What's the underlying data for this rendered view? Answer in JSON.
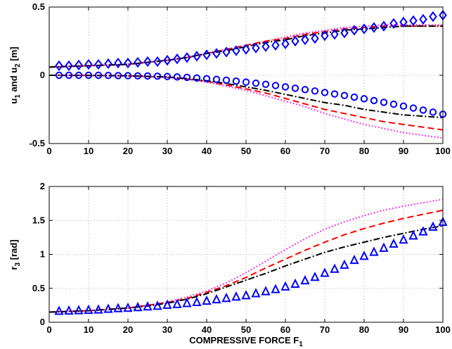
{
  "chart_data": [
    {
      "type": "line",
      "ylabel": {
        "base": "u",
        "sub1": "1",
        "mid": " and u",
        "sub2": "2",
        "tail": " [m]"
      },
      "xlim": [
        0,
        100
      ],
      "ylim": [
        -0.5,
        0.5
      ],
      "xticks": [
        "0",
        "10",
        "20",
        "30",
        "40",
        "50",
        "60",
        "70",
        "80",
        "90",
        "100"
      ],
      "yticks": [
        "-0.5",
        "0",
        "0.5"
      ],
      "ytick_values": [
        -0.5,
        0,
        0.5
      ],
      "grid": true,
      "series": [
        {
          "color": "#ff00ff",
          "style": "dotted",
          "x": [
            0,
            10,
            20,
            30,
            35,
            40,
            45,
            50,
            55,
            60,
            65,
            70,
            75,
            80,
            85,
            90,
            95,
            100
          ],
          "y": [
            0.06,
            0.07,
            0.08,
            0.11,
            0.13,
            0.16,
            0.19,
            0.22,
            0.25,
            0.28,
            0.31,
            0.33,
            0.35,
            0.36,
            0.37,
            0.37,
            0.37,
            0.37
          ]
        },
        {
          "color": "#ff0000",
          "style": "dashed",
          "x": [
            0,
            10,
            20,
            30,
            35,
            40,
            45,
            50,
            55,
            60,
            65,
            70,
            75,
            80,
            85,
            90,
            95,
            100
          ],
          "y": [
            0.06,
            0.07,
            0.08,
            0.11,
            0.13,
            0.16,
            0.19,
            0.22,
            0.25,
            0.27,
            0.3,
            0.32,
            0.34,
            0.35,
            0.36,
            0.36,
            0.36,
            0.36
          ]
        },
        {
          "color": "#000000",
          "style": "dashdot",
          "x": [
            0,
            10,
            20,
            30,
            35,
            40,
            45,
            50,
            55,
            60,
            65,
            70,
            75,
            80,
            85,
            90,
            95,
            100
          ],
          "y": [
            0.06,
            0.07,
            0.08,
            0.11,
            0.13,
            0.16,
            0.18,
            0.21,
            0.24,
            0.26,
            0.29,
            0.31,
            0.33,
            0.34,
            0.35,
            0.36,
            0.36,
            0.36
          ]
        },
        {
          "color": "#0000ff",
          "style": "markers",
          "marker": "diamond",
          "x": [
            2.5,
            5,
            7.5,
            10,
            12.5,
            15,
            17.5,
            20,
            22.5,
            25,
            27.5,
            30,
            32.5,
            35,
            37.5,
            40,
            42.5,
            45,
            47.5,
            50,
            52.5,
            55,
            57.5,
            60,
            62.5,
            65,
            67.5,
            70,
            72.5,
            75,
            77.5,
            80,
            82.5,
            85,
            87.5,
            90,
            92.5,
            95,
            97.5,
            100
          ],
          "y": [
            0.07,
            0.07,
            0.075,
            0.08,
            0.08,
            0.085,
            0.09,
            0.09,
            0.095,
            0.1,
            0.1,
            0.11,
            0.12,
            0.13,
            0.14,
            0.15,
            0.16,
            0.17,
            0.18,
            0.19,
            0.2,
            0.21,
            0.22,
            0.23,
            0.25,
            0.26,
            0.27,
            0.29,
            0.3,
            0.31,
            0.33,
            0.34,
            0.35,
            0.36,
            0.38,
            0.39,
            0.4,
            0.41,
            0.43,
            0.44
          ]
        },
        {
          "color": "#ff00ff",
          "style": "dotted",
          "x": [
            0,
            10,
            20,
            30,
            35,
            40,
            45,
            50,
            55,
            60,
            65,
            70,
            75,
            80,
            85,
            90,
            95,
            100
          ],
          "y": [
            0,
            -0.001,
            -0.005,
            -0.015,
            -0.03,
            -0.05,
            -0.08,
            -0.11,
            -0.15,
            -0.19,
            -0.23,
            -0.28,
            -0.32,
            -0.36,
            -0.39,
            -0.42,
            -0.44,
            -0.46
          ]
        },
        {
          "color": "#ff0000",
          "style": "dashed",
          "x": [
            0,
            10,
            20,
            30,
            35,
            40,
            45,
            50,
            55,
            60,
            65,
            70,
            75,
            80,
            85,
            90,
            95,
            100
          ],
          "y": [
            0,
            -0.001,
            -0.004,
            -0.014,
            -0.027,
            -0.045,
            -0.07,
            -0.1,
            -0.13,
            -0.17,
            -0.21,
            -0.25,
            -0.28,
            -0.31,
            -0.34,
            -0.36,
            -0.38,
            -0.4
          ]
        },
        {
          "color": "#000000",
          "style": "dashdot",
          "x": [
            0,
            10,
            20,
            30,
            35,
            40,
            45,
            50,
            55,
            60,
            65,
            70,
            75,
            80,
            85,
            90,
            95,
            100
          ],
          "y": [
            0,
            -0.001,
            -0.003,
            -0.012,
            -0.024,
            -0.04,
            -0.06,
            -0.085,
            -0.11,
            -0.14,
            -0.17,
            -0.2,
            -0.22,
            -0.25,
            -0.27,
            -0.29,
            -0.3,
            -0.31
          ]
        },
        {
          "color": "#0000ff",
          "style": "markers",
          "marker": "circle",
          "x": [
            2.5,
            5,
            7.5,
            10,
            12.5,
            15,
            17.5,
            20,
            22.5,
            25,
            27.5,
            30,
            32.5,
            35,
            37.5,
            40,
            42.5,
            45,
            47.5,
            50,
            52.5,
            55,
            57.5,
            60,
            62.5,
            65,
            67.5,
            70,
            72.5,
            75,
            77.5,
            80,
            82.5,
            85,
            87.5,
            90,
            92.5,
            95,
            97.5,
            100
          ],
          "y": [
            0,
            0,
            0,
            0,
            0,
            -0.001,
            -0.002,
            -0.003,
            -0.004,
            -0.005,
            -0.007,
            -0.009,
            -0.012,
            -0.015,
            -0.02,
            -0.025,
            -0.03,
            -0.036,
            -0.043,
            -0.05,
            -0.058,
            -0.066,
            -0.075,
            -0.085,
            -0.095,
            -0.105,
            -0.115,
            -0.126,
            -0.137,
            -0.148,
            -0.16,
            -0.172,
            -0.185,
            -0.198,
            -0.212,
            -0.226,
            -0.24,
            -0.255,
            -0.27,
            -0.285
          ]
        }
      ]
    },
    {
      "type": "line",
      "xlabel": {
        "base": "COMPRESSIVE FORCE F",
        "sub": "1"
      },
      "ylabel": {
        "base": "r",
        "sub": "3",
        "tail": " [rad]"
      },
      "xlim": [
        0,
        100
      ],
      "ylim": [
        0,
        2
      ],
      "xticks": [
        "0",
        "10",
        "20",
        "30",
        "40",
        "50",
        "60",
        "70",
        "80",
        "90",
        "100"
      ],
      "yticks": [
        "0",
        "0.5",
        "1",
        "1.5",
        "2"
      ],
      "ytick_values": [
        0,
        0.5,
        1,
        1.5,
        2
      ],
      "grid": true,
      "series": [
        {
          "color": "#ff00ff",
          "style": "dotted",
          "x": [
            0,
            10,
            20,
            25,
            30,
            35,
            40,
            45,
            50,
            55,
            60,
            65,
            70,
            75,
            80,
            85,
            90,
            95,
            100
          ],
          "y": [
            0.15,
            0.17,
            0.21,
            0.25,
            0.3,
            0.37,
            0.46,
            0.58,
            0.73,
            0.9,
            1.07,
            1.23,
            1.37,
            1.48,
            1.57,
            1.65,
            1.71,
            1.76,
            1.81
          ]
        },
        {
          "color": "#ff0000",
          "style": "dashed",
          "x": [
            0,
            10,
            20,
            25,
            30,
            35,
            40,
            45,
            50,
            55,
            60,
            65,
            70,
            75,
            80,
            85,
            90,
            95,
            100
          ],
          "y": [
            0.15,
            0.17,
            0.21,
            0.25,
            0.29,
            0.35,
            0.44,
            0.54,
            0.66,
            0.8,
            0.93,
            1.06,
            1.18,
            1.29,
            1.38,
            1.46,
            1.53,
            1.59,
            1.65
          ]
        },
        {
          "color": "#000000",
          "style": "dashdot",
          "x": [
            0,
            10,
            20,
            25,
            30,
            35,
            40,
            45,
            50,
            55,
            60,
            65,
            70,
            75,
            80,
            85,
            90,
            95,
            100
          ],
          "y": [
            0.15,
            0.17,
            0.21,
            0.24,
            0.28,
            0.34,
            0.42,
            0.52,
            0.62,
            0.72,
            0.83,
            0.93,
            1.03,
            1.11,
            1.18,
            1.25,
            1.31,
            1.37,
            1.42
          ]
        },
        {
          "color": "#0000ff",
          "style": "markers",
          "marker": "triangle",
          "x": [
            2.5,
            5,
            7.5,
            10,
            12.5,
            15,
            17.5,
            20,
            22.5,
            25,
            27.5,
            30,
            32.5,
            35,
            37.5,
            40,
            42.5,
            45,
            47.5,
            50,
            52.5,
            55,
            57.5,
            60,
            62.5,
            65,
            67.5,
            70,
            72.5,
            75,
            77.5,
            80,
            82.5,
            85,
            87.5,
            90,
            92.5,
            95,
            97.5,
            100
          ],
          "y": [
            0.16,
            0.165,
            0.17,
            0.175,
            0.18,
            0.19,
            0.2,
            0.205,
            0.215,
            0.225,
            0.235,
            0.25,
            0.26,
            0.275,
            0.29,
            0.31,
            0.33,
            0.35,
            0.37,
            0.39,
            0.42,
            0.45,
            0.48,
            0.52,
            0.56,
            0.61,
            0.66,
            0.72,
            0.78,
            0.84,
            0.91,
            0.97,
            1.03,
            1.09,
            1.15,
            1.21,
            1.27,
            1.33,
            1.4,
            1.47
          ]
        }
      ]
    }
  ]
}
